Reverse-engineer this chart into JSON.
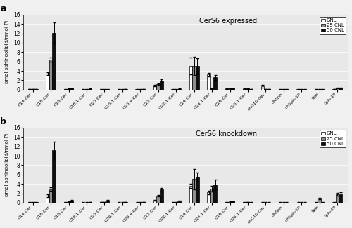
{
  "categories": [
    "C14-Cer",
    "C16-Cer",
    "C18-Cer",
    "C18:1-Cer",
    "C20-Cer",
    "C20:1-Cer",
    "C20:4-Cer",
    "C22-Cer",
    "C22:1-Cer",
    "C24-Cer",
    "C24:1-Cer",
    "C26-Cer",
    "C26:1-Cer",
    "dhC16-Cer",
    "dhSph",
    "dhSph-1P",
    "Sph",
    "Sph-1P"
  ],
  "panel_a": {
    "title": "CerS6 expressed",
    "GNL": [
      0.08,
      3.4,
      0.05,
      0.05,
      0.05,
      0.05,
      0.05,
      0.9,
      0.05,
      5.0,
      3.2,
      0.15,
      0.15,
      0.65,
      0.05,
      0.05,
      0.05,
      0.1
    ],
    "CNL25": [
      0.08,
      6.4,
      0.15,
      0.05,
      0.05,
      0.05,
      0.05,
      1.1,
      0.05,
      5.05,
      0.2,
      0.2,
      0.2,
      0.1,
      0.05,
      0.05,
      0.05,
      0.35
    ],
    "CNL50": [
      0.08,
      12.1,
      0.2,
      0.15,
      0.05,
      0.1,
      0.1,
      1.9,
      0.15,
      5.0,
      2.6,
      0.2,
      0.1,
      0.1,
      0.05,
      0.05,
      0.05,
      0.4
    ],
    "GNL_err": [
      0.03,
      0.3,
      0.02,
      0.02,
      0.02,
      0.02,
      0.02,
      0.15,
      0.02,
      1.8,
      0.35,
      0.05,
      0.05,
      0.3,
      0.02,
      0.02,
      0.02,
      0.05
    ],
    "CNL25_err": [
      0.03,
      0.5,
      0.05,
      0.02,
      0.02,
      0.02,
      0.02,
      0.15,
      0.02,
      1.9,
      0.1,
      0.05,
      0.05,
      0.05,
      0.02,
      0.02,
      0.02,
      0.08
    ],
    "CNL50_err": [
      0.03,
      2.3,
      0.06,
      0.05,
      0.02,
      0.03,
      0.03,
      0.25,
      0.05,
      1.7,
      0.55,
      0.06,
      0.04,
      0.04,
      0.02,
      0.02,
      0.02,
      0.08
    ]
  },
  "panel_b": {
    "title": "CerS6 knockdown",
    "GNL": [
      0.08,
      1.5,
      0.1,
      0.05,
      0.1,
      0.05,
      0.05,
      0.5,
      0.05,
      3.6,
      2.2,
      0.1,
      0.1,
      0.05,
      0.05,
      0.05,
      0.05,
      0.1
    ],
    "CNL25": [
      0.08,
      2.9,
      0.2,
      0.05,
      0.15,
      0.05,
      0.05,
      1.5,
      0.05,
      5.0,
      3.0,
      0.2,
      0.15,
      0.05,
      0.05,
      0.05,
      0.9,
      1.75
    ],
    "CNL50": [
      0.08,
      11.2,
      0.45,
      0.15,
      0.5,
      0.1,
      0.1,
      2.8,
      0.3,
      5.5,
      3.9,
      0.25,
      0.1,
      0.05,
      0.05,
      0.05,
      0.1,
      1.85
    ],
    "GNL_err": [
      0.03,
      0.25,
      0.04,
      0.02,
      0.03,
      0.02,
      0.02,
      0.1,
      0.02,
      0.5,
      0.4,
      0.04,
      0.04,
      0.02,
      0.02,
      0.02,
      0.02,
      0.05
    ],
    "CNL25_err": [
      0.03,
      0.4,
      0.05,
      0.02,
      0.04,
      0.02,
      0.02,
      0.2,
      0.02,
      2.2,
      0.6,
      0.05,
      0.04,
      0.02,
      0.02,
      0.02,
      0.2,
      0.3
    ],
    "CNL50_err": [
      0.03,
      1.8,
      0.1,
      0.05,
      0.12,
      0.03,
      0.03,
      0.4,
      0.1,
      0.9,
      1.0,
      0.07,
      0.04,
      0.02,
      0.02,
      0.02,
      0.05,
      0.4
    ]
  },
  "ylabel": "pmol sphingolipid/nmol Pi",
  "ylim": [
    0,
    16
  ],
  "yticks": [
    0,
    2,
    4,
    6,
    8,
    10,
    12,
    14,
    16
  ],
  "colors": {
    "GNL": "#ffffff",
    "CNL25": "#909090",
    "CNL50": "#101010"
  },
  "legend_labels": [
    "GNL",
    "25 CNL",
    "50 CNL"
  ],
  "bar_width": 0.18,
  "edgecolor": "#000000",
  "figsize": [
    5.0,
    3.25
  ],
  "dpi": 100,
  "bg_color": "#e8e8e8"
}
